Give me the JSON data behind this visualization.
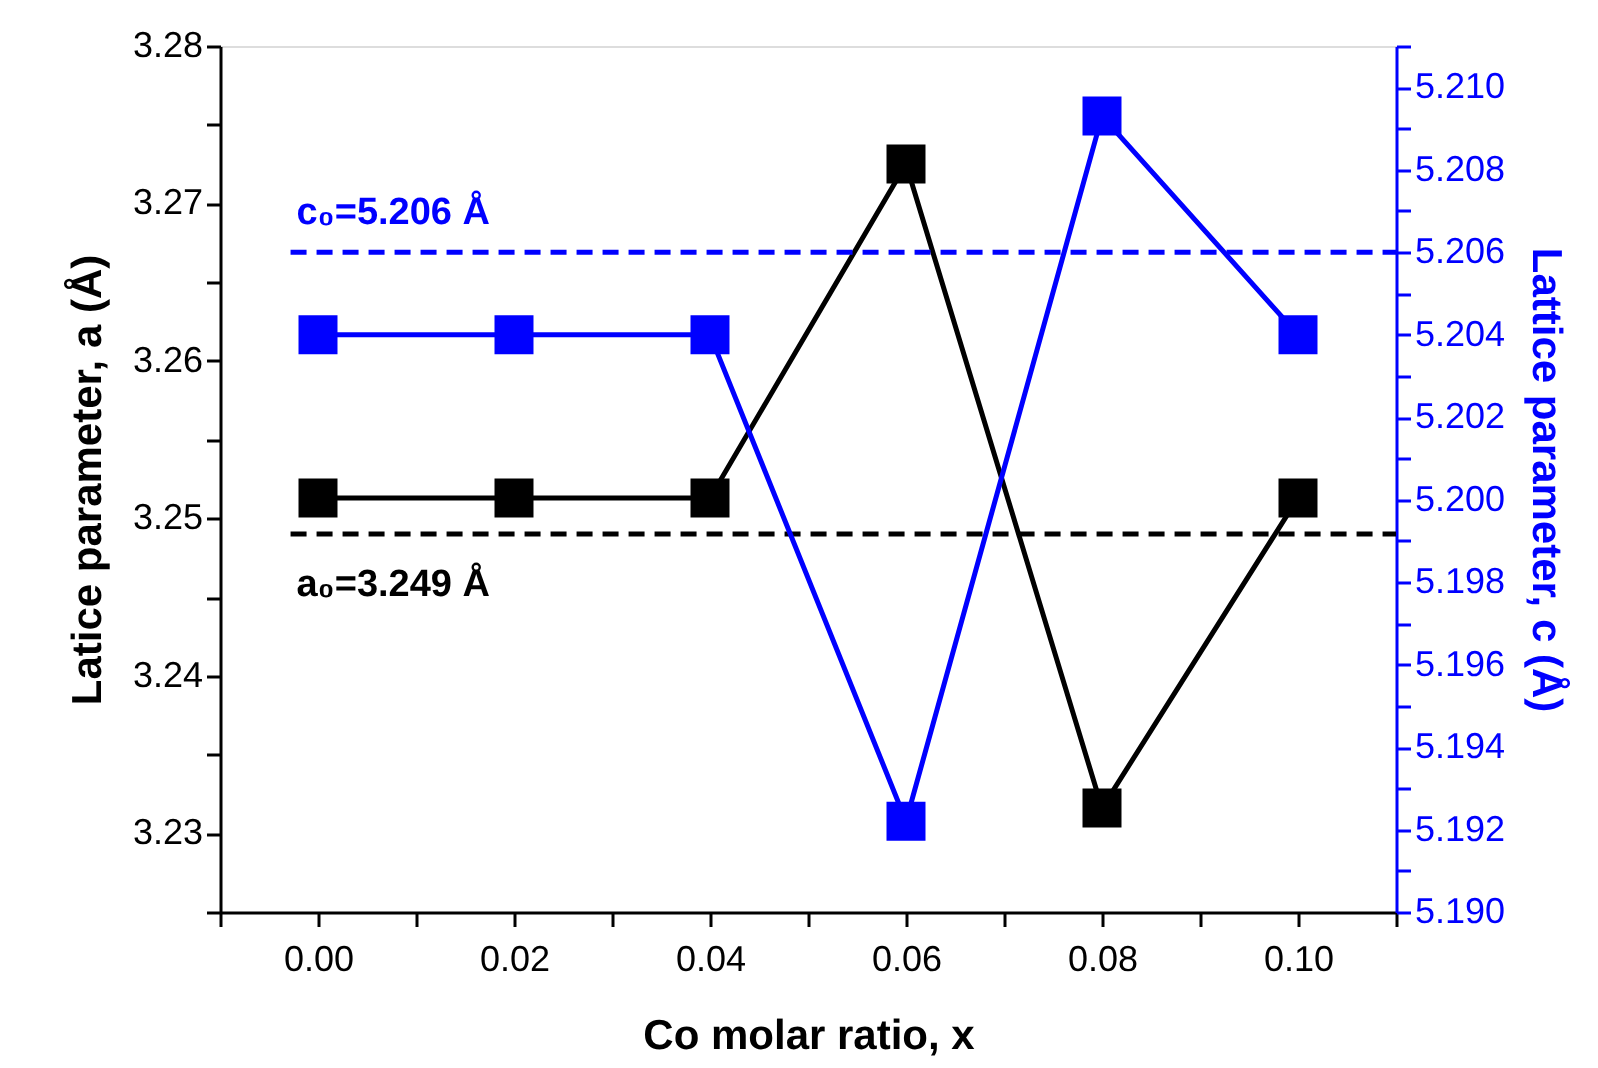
{
  "chart_data": {
    "type": "line",
    "xlabel": "Co molar ratio, x",
    "ylabel": "Latice parameter, a (Å)",
    "y2label": "Lattice parameter, c (Å)",
    "x": [
      0.0,
      0.02,
      0.04,
      0.06,
      0.08,
      0.1
    ],
    "series": [
      {
        "color": "#000000",
        "values": [
          3.2513,
          3.2513,
          3.2513,
          3.2725,
          3.2316,
          3.2513
        ]
      },
      {
        "color": "#0000ff",
        "axis": "y2",
        "values": [
          5.204,
          5.204,
          5.204,
          5.1922,
          5.2093,
          5.204
        ]
      }
    ],
    "xlim": [
      -0.01,
      0.11
    ],
    "xticks": [
      {
        "value": -0.01,
        "label": null
      },
      {
        "value": 0.0,
        "label": "0.00"
      },
      {
        "value": 0.01,
        "label": null
      },
      {
        "value": 0.02,
        "label": "0.02"
      },
      {
        "value": 0.03,
        "label": null
      },
      {
        "value": 0.04,
        "label": "0.04"
      },
      {
        "value": 0.05,
        "label": null
      },
      {
        "value": 0.06,
        "label": "0.06"
      },
      {
        "value": 0.07,
        "label": null
      },
      {
        "value": 0.08,
        "label": "0.08"
      },
      {
        "value": 0.09,
        "label": null
      },
      {
        "value": 0.1,
        "label": "0.10"
      },
      {
        "value": 0.11,
        "label": null
      }
    ],
    "ylim": [
      3.225,
      3.28
    ],
    "yticks": [
      {
        "value": 3.225,
        "label": null
      },
      3.23,
      {
        "value": 3.235,
        "label": null
      },
      3.24,
      {
        "value": 3.245,
        "label": null
      },
      3.25,
      {
        "value": 3.255,
        "label": null
      },
      3.26,
      {
        "value": 3.265,
        "label": null
      },
      3.27,
      {
        "value": 3.275,
        "label": null
      },
      3.28
    ],
    "y2lim": [
      5.19,
      5.211
    ],
    "y2ticks": [
      {
        "value": 5.19,
        "label": "5.190"
      },
      {
        "value": 5.191,
        "label": null
      },
      {
        "value": 5.192,
        "label": "5.192"
      },
      {
        "value": 5.193,
        "label": null
      },
      {
        "value": 5.194,
        "label": "5.194"
      },
      {
        "value": 5.195,
        "label": null
      },
      {
        "value": 5.196,
        "label": "5.196"
      },
      {
        "value": 5.197,
        "label": null
      },
      {
        "value": 5.198,
        "label": "5.198"
      },
      {
        "value": 5.199,
        "label": null
      },
      {
        "value": 5.2,
        "label": "5.200"
      },
      {
        "value": 5.201,
        "label": null
      },
      {
        "value": 5.202,
        "label": "5.202"
      },
      {
        "value": 5.203,
        "label": null
      },
      {
        "value": 5.204,
        "label": "5.204"
      },
      {
        "value": 5.205,
        "label": null
      },
      {
        "value": 5.206,
        "label": "5.206"
      },
      {
        "value": 5.207,
        "label": null
      },
      {
        "value": 5.208,
        "label": "5.208"
      },
      {
        "value": 5.209,
        "label": null
      },
      {
        "value": 5.21,
        "label": "5.210"
      },
      {
        "value": 5.211,
        "label": null
      }
    ],
    "ref_lines": [
      {
        "axis": "y",
        "value": 3.249,
        "label": "a₀=3.249 Å",
        "color": "#000000",
        "line_style": "dashed"
      },
      {
        "axis": "y2",
        "value": 5.206,
        "label": "c₀=5.206 Å",
        "color": "#0000ff",
        "line_style": "dashed"
      }
    ],
    "marker": "square",
    "line_style": "solid",
    "grid": false
  }
}
